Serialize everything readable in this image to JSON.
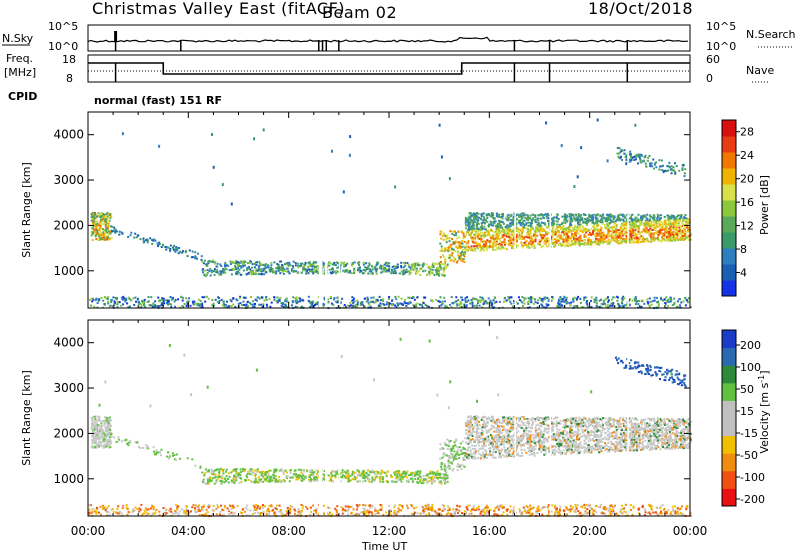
{
  "header": {
    "title": "Christmas Valley East (fitACF)",
    "beam": "Beam 02",
    "date": "18/Oct/2018"
  },
  "strip_panels": {
    "nsky_label": "N.Sky",
    "nsky_ticks": [
      "10^5",
      "10^0"
    ],
    "nsearch_label": "N.Search",
    "nsearch_ticks": [
      "10^5",
      "10^0"
    ],
    "freq_label_1": "Freq.",
    "freq_label_2": "[MHz]",
    "freq_ticks": [
      "18",
      "8"
    ],
    "nave_label": "Nave",
    "nave_ticks": [
      "60",
      "0"
    ],
    "cpid_label": "CPID",
    "cpid_value": "normal (fast) 151 RF"
  },
  "colors": {
    "power_scale": [
      "#1432e6",
      "#1a5fb4",
      "#2e7ec0",
      "#3a9a6a",
      "#5aa85a",
      "#8cc83c",
      "#d8e04a",
      "#f0b400",
      "#f07800",
      "#e83c14",
      "#d81010"
    ],
    "velocity_scale": [
      "#e81010",
      "#f05010",
      "#f08c10",
      "#f0c000",
      "#c0c0c0",
      "#c0c0c0",
      "#60c040",
      "#2e8a3a",
      "#2a6ab0",
      "#1a3cc8"
    ]
  },
  "chart_data": [
    {
      "type": "heatmap",
      "name": "power",
      "x_ticks": [
        "00:00",
        "04:00",
        "08:00",
        "12:00",
        "16:00",
        "20:00",
        "00:00"
      ],
      "xlim_hours": [
        0,
        24
      ],
      "ylabel": "Slant Range [km]",
      "y_ticks": [
        1000,
        2000,
        3000,
        4000
      ],
      "ylim": [
        180,
        4500
      ],
      "colorbar_label": "Power [dB]",
      "colorbar_ticks": [
        4,
        8,
        12,
        16,
        20,
        24,
        28
      ],
      "colorbar_range": [
        0,
        30
      ]
    },
    {
      "type": "heatmap",
      "name": "velocity",
      "x_ticks": [
        "00:00",
        "04:00",
        "08:00",
        "12:00",
        "16:00",
        "20:00",
        "00:00"
      ],
      "xlabel": "Time UT",
      "xlim_hours": [
        0,
        24
      ],
      "ylabel": "Slant Range [km]",
      "y_ticks": [
        1000,
        2000,
        3000,
        4000
      ],
      "ylim": [
        180,
        4500
      ],
      "colorbar_label": "Velocity [m s^-1]",
      "colorbar_ticks": [
        "200",
        "100",
        "50",
        "15",
        "-15",
        "-50",
        "-100",
        "-200"
      ]
    }
  ]
}
